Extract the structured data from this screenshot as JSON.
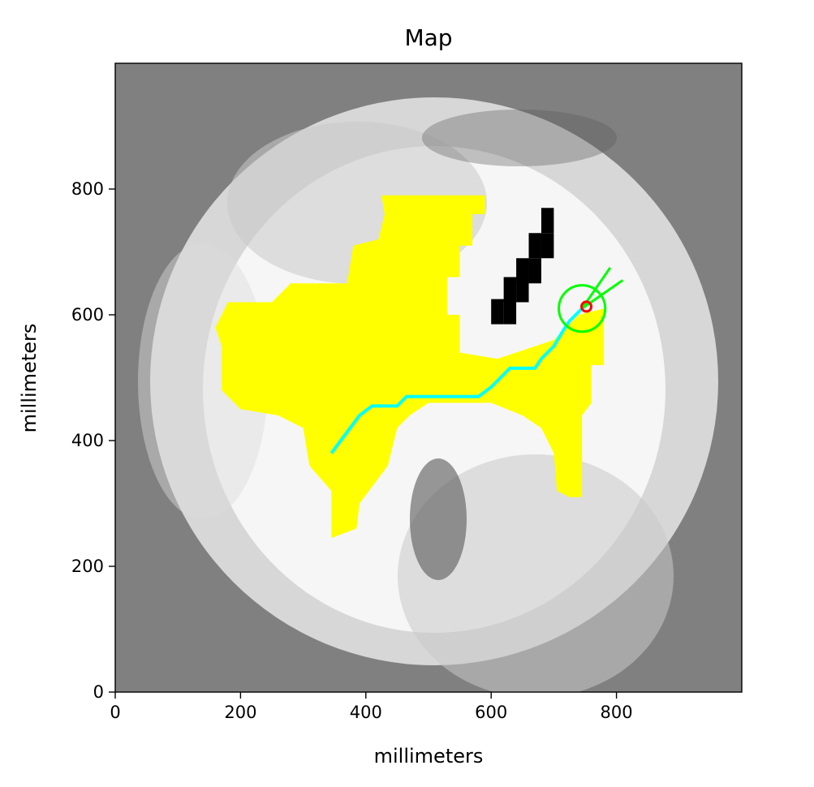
{
  "chart_data": {
    "type": "heatmap",
    "title": "Map",
    "xlabel": "millimeters",
    "ylabel": "millimeters",
    "xlim": [
      0,
      1000
    ],
    "ylim": [
      0,
      1000
    ],
    "xticks": [
      0,
      200,
      400,
      600,
      800
    ],
    "yticks": [
      0,
      200,
      400,
      600,
      800
    ],
    "xtick_labels": [
      "0",
      "200",
      "400",
      "600",
      "800"
    ],
    "ytick_labels": [
      "0",
      "200",
      "400",
      "600",
      "800"
    ],
    "grid": false,
    "colormap": "grayscale (white = free, black = occupied, gray = unknown)",
    "colors": {
      "unknown": "#808080",
      "free": "#f4f4f4",
      "occupied": "#000000",
      "region": "#ffff00",
      "path": "#00ffff",
      "robot": "#00ff00",
      "target": "#ff0000"
    },
    "region_polygon": [
      [
        425,
        790
      ],
      [
        590,
        790
      ],
      [
        590,
        760
      ],
      [
        570,
        760
      ],
      [
        570,
        710
      ],
      [
        550,
        710
      ],
      [
        550,
        660
      ],
      [
        530,
        660
      ],
      [
        530,
        600
      ],
      [
        550,
        600
      ],
      [
        550,
        540
      ],
      [
        610,
        530
      ],
      [
        700,
        560
      ],
      [
        740,
        600
      ],
      [
        780,
        610
      ],
      [
        780,
        520
      ],
      [
        760,
        520
      ],
      [
        760,
        460
      ],
      [
        745,
        440
      ],
      [
        745,
        310
      ],
      [
        725,
        310
      ],
      [
        705,
        320
      ],
      [
        700,
        380
      ],
      [
        680,
        420
      ],
      [
        650,
        440
      ],
      [
        600,
        460
      ],
      [
        500,
        460
      ],
      [
        470,
        440
      ],
      [
        450,
        420
      ],
      [
        435,
        360
      ],
      [
        420,
        340
      ],
      [
        390,
        300
      ],
      [
        385,
        260
      ],
      [
        345,
        245
      ],
      [
        345,
        320
      ],
      [
        310,
        360
      ],
      [
        300,
        420
      ],
      [
        260,
        440
      ],
      [
        200,
        450
      ],
      [
        170,
        480
      ],
      [
        170,
        550
      ],
      [
        160,
        580
      ],
      [
        180,
        620
      ],
      [
        250,
        620
      ],
      [
        280,
        650
      ],
      [
        330,
        650
      ],
      [
        370,
        650
      ],
      [
        380,
        710
      ],
      [
        420,
        720
      ],
      [
        430,
        760
      ]
    ],
    "obstacle_cells": [
      [
        690,
        750
      ],
      [
        690,
        710
      ],
      [
        670,
        710
      ],
      [
        670,
        670
      ],
      [
        650,
        670
      ],
      [
        650,
        640
      ],
      [
        630,
        640
      ],
      [
        630,
        605
      ],
      [
        610,
        605
      ]
    ],
    "path": [
      [
        345,
        380
      ],
      [
        360,
        400
      ],
      [
        375,
        420
      ],
      [
        390,
        440
      ],
      [
        410,
        455
      ],
      [
        450,
        455
      ],
      [
        465,
        470
      ],
      [
        580,
        470
      ],
      [
        600,
        485
      ],
      [
        620,
        505
      ],
      [
        630,
        515
      ],
      [
        670,
        515
      ],
      [
        680,
        530
      ],
      [
        700,
        550
      ],
      [
        715,
        575
      ],
      [
        725,
        590
      ],
      [
        745,
        610
      ]
    ],
    "robot_position": [
      745,
      610
    ],
    "robot_radius": 37,
    "heading_lines": [
      [
        [
          745,
          610
        ],
        [
          790,
          675
        ]
      ],
      [
        [
          745,
          610
        ],
        [
          810,
          655
        ]
      ]
    ],
    "target_position": [
      752,
      613
    ]
  }
}
